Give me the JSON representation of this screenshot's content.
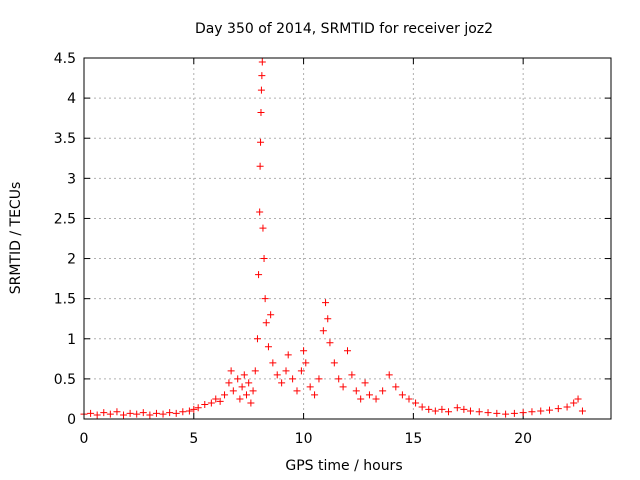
{
  "chart_data": {
    "type": "scatter",
    "title": "Day 350 of 2014, SRMTID for receiver joz2",
    "xlabel": "GPS time / hours",
    "ylabel": "SRMTID / TECUs",
    "xlim": [
      0,
      24
    ],
    "ylim": [
      0,
      4.5
    ],
    "xticks": [
      0,
      5,
      10,
      15,
      20
    ],
    "yticks": [
      0,
      0.5,
      1,
      1.5,
      2,
      2.5,
      3,
      3.5,
      4,
      4.5
    ],
    "xtick_labels": [
      "0",
      "5",
      "10",
      "15",
      "20"
    ],
    "ytick_labels": [
      "0",
      "0.5",
      "1",
      "1.5",
      "2",
      "2.5",
      "3",
      "3.5",
      "4",
      "4.5"
    ],
    "grid": true,
    "marker": "+",
    "color": "#ff0000",
    "series": [
      {
        "name": "SRMTID",
        "points": [
          [
            0.0,
            0.06
          ],
          [
            0.3,
            0.07
          ],
          [
            0.6,
            0.05
          ],
          [
            0.9,
            0.08
          ],
          [
            1.2,
            0.06
          ],
          [
            1.5,
            0.09
          ],
          [
            1.8,
            0.05
          ],
          [
            2.1,
            0.07
          ],
          [
            2.4,
            0.06
          ],
          [
            2.7,
            0.08
          ],
          [
            3.0,
            0.05
          ],
          [
            3.3,
            0.07
          ],
          [
            3.6,
            0.06
          ],
          [
            3.9,
            0.08
          ],
          [
            4.2,
            0.07
          ],
          [
            4.5,
            0.09
          ],
          [
            4.8,
            0.1
          ],
          [
            5.0,
            0.12
          ],
          [
            5.2,
            0.14
          ],
          [
            5.5,
            0.18
          ],
          [
            5.8,
            0.2
          ],
          [
            6.0,
            0.25
          ],
          [
            6.2,
            0.22
          ],
          [
            6.4,
            0.3
          ],
          [
            6.6,
            0.45
          ],
          [
            6.7,
            0.6
          ],
          [
            6.8,
            0.35
          ],
          [
            7.0,
            0.5
          ],
          [
            7.1,
            0.25
          ],
          [
            7.2,
            0.4
          ],
          [
            7.3,
            0.55
          ],
          [
            7.4,
            0.3
          ],
          [
            7.5,
            0.45
          ],
          [
            7.6,
            0.2
          ],
          [
            7.7,
            0.35
          ],
          [
            7.8,
            0.6
          ],
          [
            7.9,
            1.0
          ],
          [
            7.95,
            1.8
          ],
          [
            8.0,
            2.58
          ],
          [
            8.02,
            3.15
          ],
          [
            8.04,
            3.45
          ],
          [
            8.06,
            3.82
          ],
          [
            8.08,
            4.1
          ],
          [
            8.1,
            4.28
          ],
          [
            8.12,
            4.45
          ],
          [
            8.15,
            2.38
          ],
          [
            8.2,
            2.0
          ],
          [
            8.25,
            1.5
          ],
          [
            8.3,
            1.2
          ],
          [
            8.4,
            0.9
          ],
          [
            8.5,
            1.3
          ],
          [
            8.6,
            0.7
          ],
          [
            8.8,
            0.55
          ],
          [
            9.0,
            0.45
          ],
          [
            9.2,
            0.6
          ],
          [
            9.3,
            0.8
          ],
          [
            9.5,
            0.5
          ],
          [
            9.7,
            0.35
          ],
          [
            9.9,
            0.6
          ],
          [
            10.0,
            0.85
          ],
          [
            10.1,
            0.7
          ],
          [
            10.3,
            0.4
          ],
          [
            10.5,
            0.3
          ],
          [
            10.7,
            0.5
          ],
          [
            10.9,
            1.1
          ],
          [
            11.0,
            1.45
          ],
          [
            11.1,
            1.25
          ],
          [
            11.2,
            0.95
          ],
          [
            11.4,
            0.7
          ],
          [
            11.6,
            0.5
          ],
          [
            11.8,
            0.4
          ],
          [
            12.0,
            0.85
          ],
          [
            12.2,
            0.55
          ],
          [
            12.4,
            0.35
          ],
          [
            12.6,
            0.25
          ],
          [
            12.8,
            0.45
          ],
          [
            13.0,
            0.3
          ],
          [
            13.3,
            0.25
          ],
          [
            13.6,
            0.35
          ],
          [
            13.9,
            0.55
          ],
          [
            14.2,
            0.4
          ],
          [
            14.5,
            0.3
          ],
          [
            14.8,
            0.25
          ],
          [
            15.1,
            0.2
          ],
          [
            15.4,
            0.15
          ],
          [
            15.7,
            0.12
          ],
          [
            16.0,
            0.1
          ],
          [
            16.3,
            0.12
          ],
          [
            16.6,
            0.09
          ],
          [
            17.0,
            0.14
          ],
          [
            17.3,
            0.12
          ],
          [
            17.6,
            0.1
          ],
          [
            18.0,
            0.09
          ],
          [
            18.4,
            0.08
          ],
          [
            18.8,
            0.07
          ],
          [
            19.2,
            0.06
          ],
          [
            19.6,
            0.07
          ],
          [
            20.0,
            0.08
          ],
          [
            20.4,
            0.09
          ],
          [
            20.8,
            0.1
          ],
          [
            21.2,
            0.11
          ],
          [
            21.6,
            0.13
          ],
          [
            22.0,
            0.15
          ],
          [
            22.3,
            0.2
          ],
          [
            22.5,
            0.25
          ],
          [
            22.7,
            0.1
          ]
        ]
      }
    ]
  }
}
